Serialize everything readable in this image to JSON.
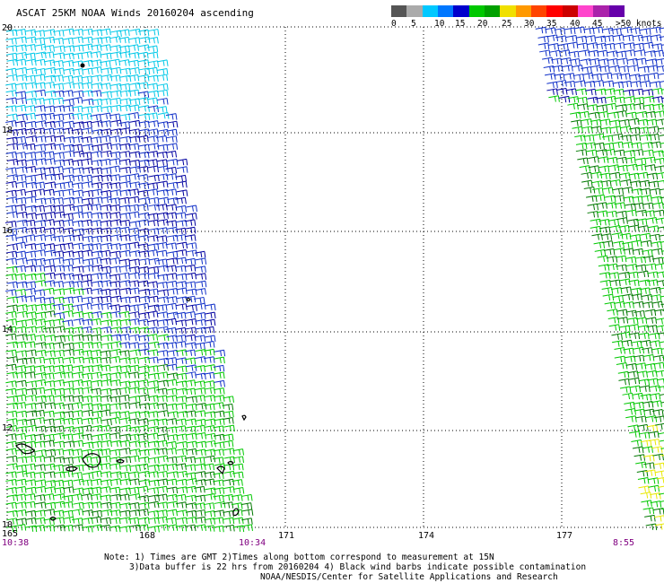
{
  "title": "ASCAT 25KM NOAA Winds 20160204 ascending",
  "legend": {
    "unit_label": ">50 knots",
    "ticks": [
      "0",
      "5",
      "10",
      "15",
      "20",
      "25",
      "30",
      "35",
      "40",
      "45"
    ],
    "colors": [
      "#555555",
      "#aaaaaa",
      "#00c8ff",
      "#0077ff",
      "#0000cc",
      "#00c800",
      "#00a000",
      "#f0e000",
      "#ff9900",
      "#ff4400",
      "#ff0000",
      "#cc0000",
      "#ff44cc",
      "#aa22aa",
      "#6600aa"
    ]
  },
  "axes": {
    "lon_labels": [
      "165",
      "168",
      "171",
      "174",
      "177"
    ],
    "lat_labels": [
      "20",
      "18",
      "16",
      "14",
      "12",
      "10"
    ]
  },
  "times": {
    "left": "10:38",
    "middle": "10:34",
    "right": "8:55"
  },
  "notes": {
    "line1": "Note: 1) Times are GMT 2)Times along bottom correspond to measurement at 15N",
    "line2": "3)Data buffer is 22 hrs from 20160204 4) Black wind barbs indicate possible contamination",
    "line3": "NOAA/NESDIS/Center for Satellite Applications and Research"
  },
  "colors": {
    "cyan": "#00c8e8",
    "blue": "#1030c8",
    "darkblue": "#0000a0",
    "green": "#00c800",
    "darkgreen": "#007800",
    "yellow": "#e8e800",
    "purple_time": "#800080"
  }
}
